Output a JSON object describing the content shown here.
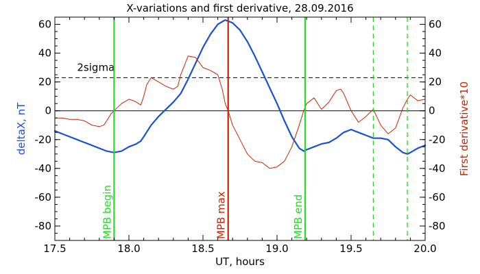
{
  "chart_data": {
    "type": "line",
    "title": "X-variations and first derivative, 28.09.2016",
    "xlabel": "UT, hours",
    "ylabel_left": "deltaX, nT",
    "ylabel_right": "First derivative*10",
    "xlim": [
      17.5,
      20.0
    ],
    "ylim": [
      -90,
      65
    ],
    "xticks": [
      "17.5",
      "18.0",
      "18.5",
      "19.0",
      "19.5",
      "20.0"
    ],
    "yticks": [
      "60",
      "40",
      "20",
      "0",
      "-20",
      "-40",
      "-60",
      "-80"
    ],
    "grid": false,
    "colors": {
      "deltaX": "#1a4fd6",
      "derivative": "#cc2200",
      "mpb": "#22dd22",
      "max": "#cc2200",
      "reference": "#000000"
    },
    "series": [
      {
        "key": "deltaX",
        "points": [
          [
            17.5,
            -14
          ],
          [
            17.55,
            -16
          ],
          [
            17.6,
            -18
          ],
          [
            17.65,
            -20
          ],
          [
            17.7,
            -22
          ],
          [
            17.75,
            -24
          ],
          [
            17.8,
            -26
          ],
          [
            17.85,
            -28
          ],
          [
            17.9,
            -29
          ],
          [
            17.95,
            -28
          ],
          [
            18.0,
            -25
          ],
          [
            18.05,
            -23
          ],
          [
            18.08,
            -21
          ],
          [
            18.1,
            -18
          ],
          [
            18.15,
            -10
          ],
          [
            18.2,
            -4
          ],
          [
            18.25,
            1
          ],
          [
            18.3,
            6
          ],
          [
            18.35,
            12
          ],
          [
            18.4,
            22
          ],
          [
            18.45,
            33
          ],
          [
            18.5,
            44
          ],
          [
            18.55,
            53
          ],
          [
            18.6,
            60
          ],
          [
            18.65,
            63
          ],
          [
            18.7,
            61
          ],
          [
            18.75,
            56
          ],
          [
            18.8,
            48
          ],
          [
            18.85,
            38
          ],
          [
            18.9,
            27
          ],
          [
            18.95,
            16
          ],
          [
            19.0,
            5
          ],
          [
            19.05,
            -7
          ],
          [
            19.1,
            -18
          ],
          [
            19.15,
            -26
          ],
          [
            19.18,
            -28
          ],
          [
            19.2,
            -27
          ],
          [
            19.25,
            -25
          ],
          [
            19.3,
            -23
          ],
          [
            19.35,
            -22
          ],
          [
            19.4,
            -19
          ],
          [
            19.45,
            -15
          ],
          [
            19.5,
            -13
          ],
          [
            19.55,
            -15
          ],
          [
            19.6,
            -17
          ],
          [
            19.65,
            -19
          ],
          [
            19.7,
            -19
          ],
          [
            19.75,
            -20
          ],
          [
            19.8,
            -25
          ],
          [
            19.85,
            -29
          ],
          [
            19.88,
            -30
          ],
          [
            19.9,
            -29
          ],
          [
            19.95,
            -26
          ],
          [
            20.0,
            -24
          ]
        ]
      },
      {
        "key": "derivative",
        "points": [
          [
            17.5,
            -5
          ],
          [
            17.55,
            -5
          ],
          [
            17.6,
            -6
          ],
          [
            17.65,
            -6
          ],
          [
            17.7,
            -7
          ],
          [
            17.75,
            -10
          ],
          [
            17.8,
            -11
          ],
          [
            17.83,
            -10
          ],
          [
            17.85,
            -7
          ],
          [
            17.88,
            -2
          ],
          [
            17.9,
            0
          ],
          [
            17.95,
            5
          ],
          [
            18.0,
            8
          ],
          [
            18.03,
            7
          ],
          [
            18.05,
            6
          ],
          [
            18.08,
            4
          ],
          [
            18.1,
            10
          ],
          [
            18.12,
            18
          ],
          [
            18.15,
            23
          ],
          [
            18.2,
            20
          ],
          [
            18.25,
            17
          ],
          [
            18.3,
            15
          ],
          [
            18.33,
            17
          ],
          [
            18.35,
            25
          ],
          [
            18.4,
            38
          ],
          [
            18.45,
            37
          ],
          [
            18.5,
            30
          ],
          [
            18.55,
            28
          ],
          [
            18.6,
            25
          ],
          [
            18.63,
            15
          ],
          [
            18.65,
            5
          ],
          [
            18.67,
            0
          ],
          [
            18.7,
            -10
          ],
          [
            18.75,
            -20
          ],
          [
            18.8,
            -30
          ],
          [
            18.85,
            -35
          ],
          [
            18.9,
            -36
          ],
          [
            18.95,
            -40
          ],
          [
            19.0,
            -39
          ],
          [
            19.05,
            -35
          ],
          [
            19.1,
            -25
          ],
          [
            19.15,
            -10
          ],
          [
            19.18,
            0
          ],
          [
            19.2,
            5
          ],
          [
            19.25,
            9
          ],
          [
            19.3,
            1
          ],
          [
            19.35,
            6
          ],
          [
            19.4,
            14
          ],
          [
            19.43,
            15
          ],
          [
            19.45,
            12
          ],
          [
            19.5,
            0
          ],
          [
            19.55,
            -8
          ],
          [
            19.6,
            -4
          ],
          [
            19.65,
            1
          ],
          [
            19.7,
            -10
          ],
          [
            19.75,
            -16
          ],
          [
            19.8,
            -12
          ],
          [
            19.85,
            2
          ],
          [
            19.88,
            8
          ],
          [
            19.9,
            11
          ],
          [
            19.95,
            7
          ],
          [
            20.0,
            8
          ]
        ]
      }
    ],
    "reference_lines": [
      {
        "key": "threshold",
        "y": 23,
        "style": "dashed",
        "label": "2sigma"
      },
      {
        "key": "zero",
        "y": 0,
        "style": "solid",
        "label": ""
      }
    ],
    "vertical_markers": [
      {
        "key": "mpb-begin",
        "x": 17.9,
        "color": "mpb",
        "style": "solid",
        "label": "MPB begin"
      },
      {
        "key": "mpb-max",
        "x": 18.67,
        "color": "max",
        "style": "solid",
        "label": "MPB max"
      },
      {
        "key": "mpb-end",
        "x": 19.19,
        "color": "mpb",
        "style": "solid",
        "label": "MPB end"
      },
      {
        "key": "extra-1",
        "x": 19.65,
        "color": "mpb",
        "style": "dashed",
        "label": ""
      },
      {
        "key": "extra-2",
        "x": 19.88,
        "color": "mpb",
        "style": "dashed",
        "label": ""
      }
    ]
  }
}
